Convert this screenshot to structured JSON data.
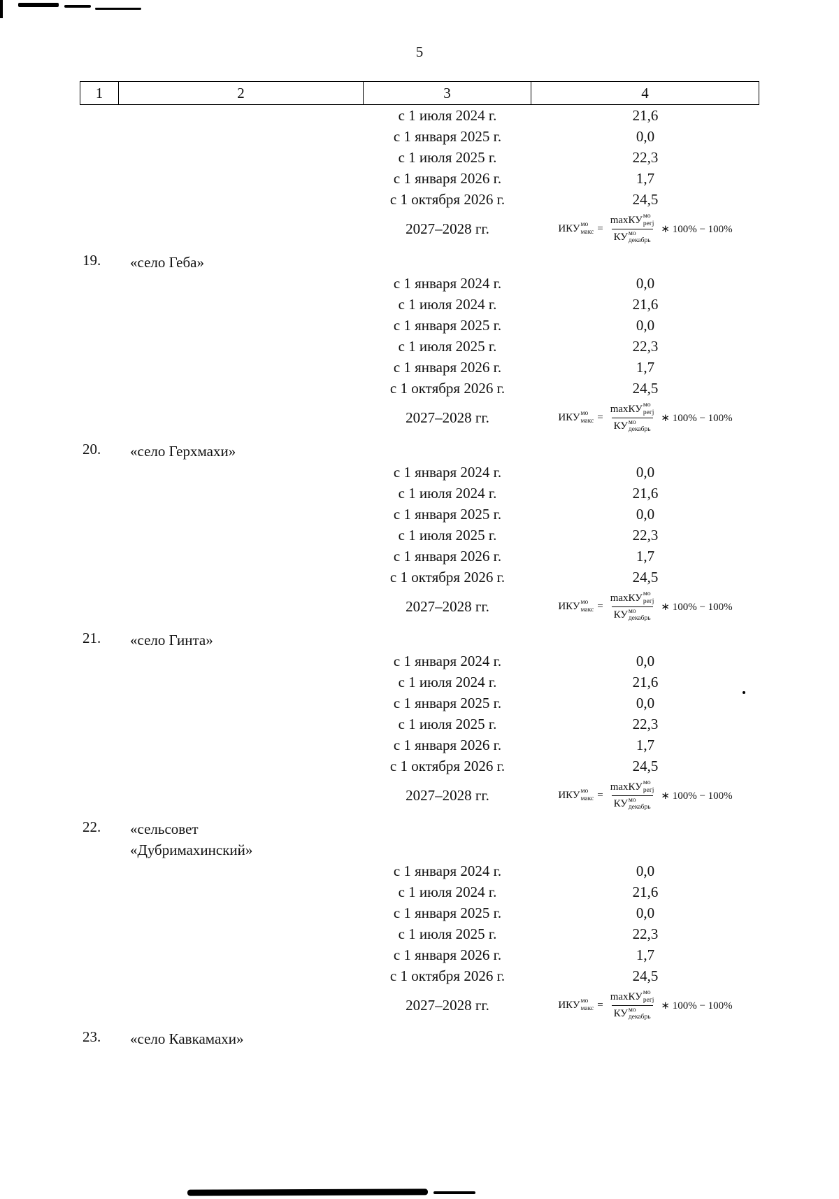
{
  "page_number": "5",
  "table": {
    "headers": [
      "1",
      "2",
      "3",
      "4"
    ],
    "entries": [
      {
        "num": "",
        "name": "",
        "rows": [
          {
            "date": "с 1 июля 2024 г.",
            "value": "21,6"
          },
          {
            "date": "с 1 января 2025 г.",
            "value": "0,0"
          },
          {
            "date": "с 1 июля 2025 г.",
            "value": "22,3"
          },
          {
            "date": "с 1 января 2026 г.",
            "value": "1,7"
          },
          {
            "date": "с 1 октября 2026 г.",
            "value": "24,5"
          },
          {
            "date": "2027–2028 гг.",
            "formula": true
          }
        ]
      },
      {
        "num": "19.",
        "name": "«село Геба»",
        "rows": [
          {
            "date": "с 1 января 2024 г.",
            "value": "0,0"
          },
          {
            "date": "с 1 июля 2024 г.",
            "value": "21,6"
          },
          {
            "date": "с 1 января 2025 г.",
            "value": "0,0"
          },
          {
            "date": "с 1 июля 2025 г.",
            "value": "22,3"
          },
          {
            "date": "с 1 января 2026 г.",
            "value": "1,7"
          },
          {
            "date": "с 1 октября 2026 г.",
            "value": "24,5"
          },
          {
            "date": "2027–2028 гг.",
            "formula": true
          }
        ]
      },
      {
        "num": "20.",
        "name": "«село Герхмахи»",
        "rows": [
          {
            "date": "с 1 января 2024 г.",
            "value": "0,0"
          },
          {
            "date": "с 1 июля 2024 г.",
            "value": "21,6"
          },
          {
            "date": "с 1 января 2025 г.",
            "value": "0,0"
          },
          {
            "date": "с 1 июля 2025 г.",
            "value": "22,3"
          },
          {
            "date": "с 1 января 2026 г.",
            "value": "1,7"
          },
          {
            "date": "с 1 октября 2026 г.",
            "value": "24,5"
          },
          {
            "date": "2027–2028 гг.",
            "formula": true
          }
        ]
      },
      {
        "num": "21.",
        "name": "«село Гинта»",
        "rows": [
          {
            "date": "с 1 января 2024 г.",
            "value": "0,0"
          },
          {
            "date": "с 1 июля 2024 г.",
            "value": "21,6"
          },
          {
            "date": "с 1 января 2025 г.",
            "value": "0,0"
          },
          {
            "date": "с 1 июля 2025 г.",
            "value": "22,3"
          },
          {
            "date": "с 1 января 2026 г.",
            "value": "1,7"
          },
          {
            "date": "с 1 октября 2026 г.",
            "value": "24,5"
          },
          {
            "date": "2027–2028 гг.",
            "formula": true
          }
        ]
      },
      {
        "num": "22.",
        "name": "«сельсовет\n«Дубримахинский»",
        "rows": [
          {
            "date": "с 1 января 2024 г.",
            "value": "0,0"
          },
          {
            "date": "с 1 июля 2024 г.",
            "value": "21,6"
          },
          {
            "date": "с 1 января 2025 г.",
            "value": "0,0"
          },
          {
            "date": "с 1 июля 2025 г.",
            "value": "22,3"
          },
          {
            "date": "с 1 января 2026 г.",
            "value": "1,7"
          },
          {
            "date": "с 1 октября 2026 г.",
            "value": "24,5"
          },
          {
            "date": "2027–2028 гг.",
            "formula": true
          }
        ]
      },
      {
        "num": "23.",
        "name": "«село Кавкамахи»",
        "rows": []
      }
    ]
  },
  "formula": {
    "lhs_base": "ИКУ",
    "lhs_sup": "мо",
    "lhs_sub": "макс",
    "equals": "=",
    "num_base": "maxКУ",
    "num_sup": "мо",
    "num_sub": "регj",
    "den_base": "КУ",
    "den_sup": "мо",
    "den_sub": "декабрь",
    "tail": "∗ 100% − 100%"
  }
}
